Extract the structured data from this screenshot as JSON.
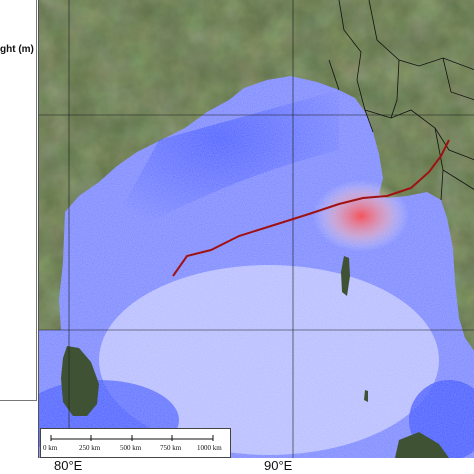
{
  "legend": {
    "title": "ght (m)"
  },
  "map": {
    "colors": {
      "land": "#5f7148",
      "land_dark": "#3f5234",
      "sea_deep": "#2f45ff",
      "sea_mid": "#7a86ff",
      "sea_light": "#dfe2ff",
      "surge_high": "#ff6a6a",
      "track": "#a01212",
      "borders": "#111111",
      "grid": "#1a1a1a"
    },
    "track_name": "cyclone-track"
  },
  "scalebar": {
    "labels": [
      "0 km",
      "250 km",
      "500 km",
      "750 km",
      "1000 km"
    ]
  },
  "longitude_labels": [
    "80°E",
    "90°E"
  ]
}
